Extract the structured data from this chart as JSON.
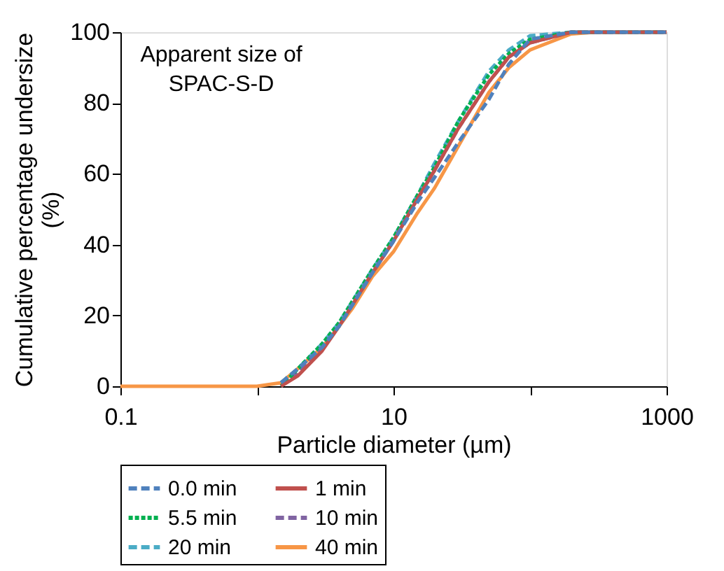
{
  "chart_data": {
    "type": "line",
    "xlabel": "Particle diameter (µm)",
    "ylabel": "Cumulative percentage undersize (%)",
    "annotations": [
      "Apparent size of SPAC-S-D"
    ],
    "x": [
      0.1,
      1,
      1.5,
      2,
      3,
      4,
      5,
      7,
      10,
      15,
      20,
      30,
      50,
      70,
      100,
      200,
      300,
      1000
    ],
    "series": [
      {
        "name": "0.0 min",
        "color": "#4f81bd",
        "line_style": "dashed",
        "values": [
          null,
          null,
          1,
          5,
          11,
          17,
          23,
          32,
          41,
          52,
          59,
          69,
          81,
          91,
          98,
          100,
          100,
          100
        ]
      },
      {
        "name": "1 min",
        "color": "#c0504d",
        "line_style": "solid",
        "values": [
          null,
          null,
          0,
          3,
          10,
          17,
          23,
          32,
          41,
          53,
          61,
          73,
          86,
          93,
          97,
          100,
          100,
          100
        ]
      },
      {
        "name": "5.5 min",
        "color": "#00b050",
        "line_style": "dotted",
        "values": [
          null,
          null,
          0,
          5,
          12,
          18,
          24,
          33,
          42,
          54,
          62,
          75,
          88,
          94,
          98,
          100,
          100,
          100
        ]
      },
      {
        "name": "10 min",
        "color": "#8064a2",
        "line_style": "dashed",
        "values": [
          null,
          null,
          0,
          4,
          11,
          17,
          23,
          32,
          41,
          53,
          61,
          73,
          86,
          93,
          97,
          100,
          100,
          100
        ]
      },
      {
        "name": "20 min",
        "color": "#4bacc6",
        "line_style": "dashed",
        "values": [
          null,
          null,
          1,
          5,
          12,
          18,
          24,
          33,
          42,
          54,
          63,
          75,
          89,
          95,
          99,
          100,
          100,
          100
        ]
      },
      {
        "name": "40 min",
        "color": "#f79646",
        "line_style": "solid",
        "values": [
          0,
          0,
          1,
          5,
          11,
          17,
          22,
          31,
          38,
          49,
          56,
          68,
          83,
          90,
          95,
          99.5,
          100,
          100
        ]
      }
    ],
    "xlim": [
      0.1,
      1000
    ],
    "xticks": [
      0.1,
      {
        "value": 1,
        "label": null
      },
      10,
      {
        "value": 100,
        "label": null
      },
      1000
    ],
    "ylim": [
      0,
      100
    ],
    "yticks": [
      0,
      20,
      40,
      60,
      80,
      100
    ],
    "log": "x",
    "grid": false,
    "legend": "bottom",
    "marker": "none"
  }
}
